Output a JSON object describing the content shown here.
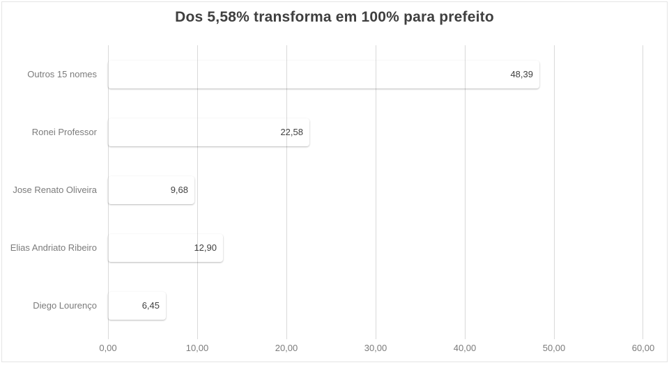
{
  "title": "Dos 5,58% transforma em 100% para prefeito",
  "chart_data": {
    "type": "bar",
    "orientation": "horizontal",
    "title": "Dos 5,58% transforma em 100% para prefeito",
    "categories": [
      "Outros 15 nomes",
      "Ronei Professor",
      "Jose Renato Oliveira",
      "Elias Andriato Ribeiro",
      "Diego Lourenço"
    ],
    "values": [
      48.39,
      22.58,
      9.68,
      12.9,
      6.45
    ],
    "value_labels": [
      "48,39",
      "22,58",
      "9,68",
      "12,90",
      "6,45"
    ],
    "x_ticks": [
      "0,00",
      "10,00",
      "20,00",
      "30,00",
      "40,00",
      "50,00",
      "60,00"
    ],
    "xlim": [
      0,
      60
    ],
    "grid": true,
    "legend": false,
    "colors": {
      "bar_fill": "#6fae4e",
      "bar_fill_top": "#80bb60",
      "bar_fill_bottom": "#4f7e33",
      "gridline": "#d9d9d9",
      "title_text": "#3f3f3f",
      "axis_text": "#7b7b7b",
      "value_text": "#3f3f3f",
      "background": "#ffffff"
    }
  }
}
